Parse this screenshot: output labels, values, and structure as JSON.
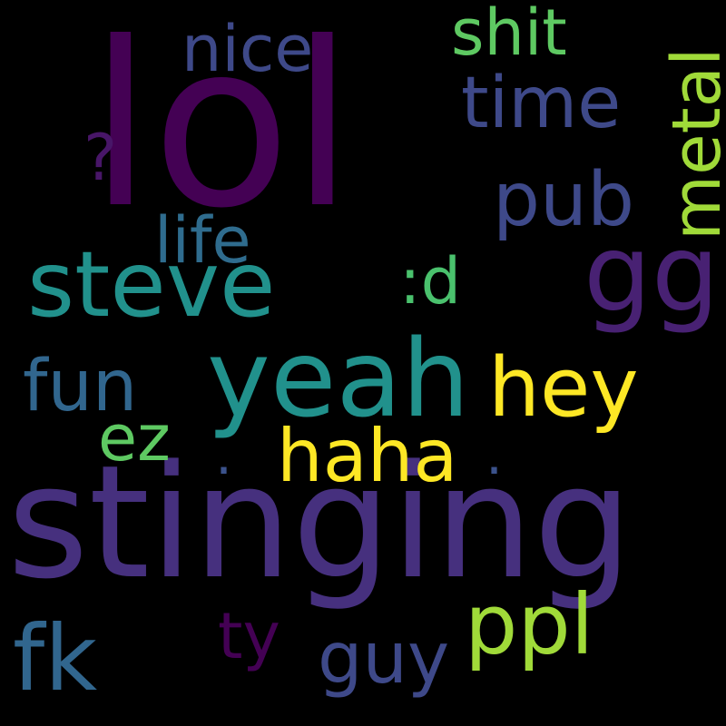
{
  "wordcloud": {
    "words": {
      "lol": {
        "text": "lol",
        "color": "#440154"
      },
      "stinging": {
        "text": "stinging",
        "color": "#46307e"
      },
      "steve": {
        "text": "steve",
        "color": "#21918c"
      },
      "yeah": {
        "text": "yeah",
        "color": "#21918c"
      },
      "gg": {
        "text": "gg",
        "color": "#482173"
      },
      "hey": {
        "text": "hey",
        "color": "#fde725"
      },
      "haha": {
        "text": "haha",
        "color": "#fde725"
      },
      "metal": {
        "text": "metal",
        "color": "#a0da39"
      },
      "ppl": {
        "text": "ppl",
        "color": "#a0da39"
      },
      "fk": {
        "text": "fk",
        "color": "#31668e"
      },
      "nice": {
        "text": "nice",
        "color": "#3e4989"
      },
      "shit": {
        "text": "shit",
        "color": "#5ec962"
      },
      "time": {
        "text": "time",
        "color": "#3e4989"
      },
      "pub": {
        "text": "pub",
        "color": "#3e4989"
      },
      "life": {
        "text": "life",
        "color": "#2f6c8e"
      },
      "fun": {
        "text": "fun",
        "color": "#31668e"
      },
      "ez": {
        "text": "ez",
        "color": "#5ec962"
      },
      "d": {
        "text": ":d",
        "color": "#4ac16d"
      },
      "question": {
        "text": "?",
        "color": "#481668"
      },
      "ty": {
        "text": "ty",
        "color": "#440154"
      },
      "guy": {
        "text": "guy",
        "color": "#3e4989"
      },
      "dot1": {
        "text": ".",
        "color": "#3b528b"
      },
      "dot2": {
        "text": ".",
        "color": "#3b528b"
      }
    }
  }
}
